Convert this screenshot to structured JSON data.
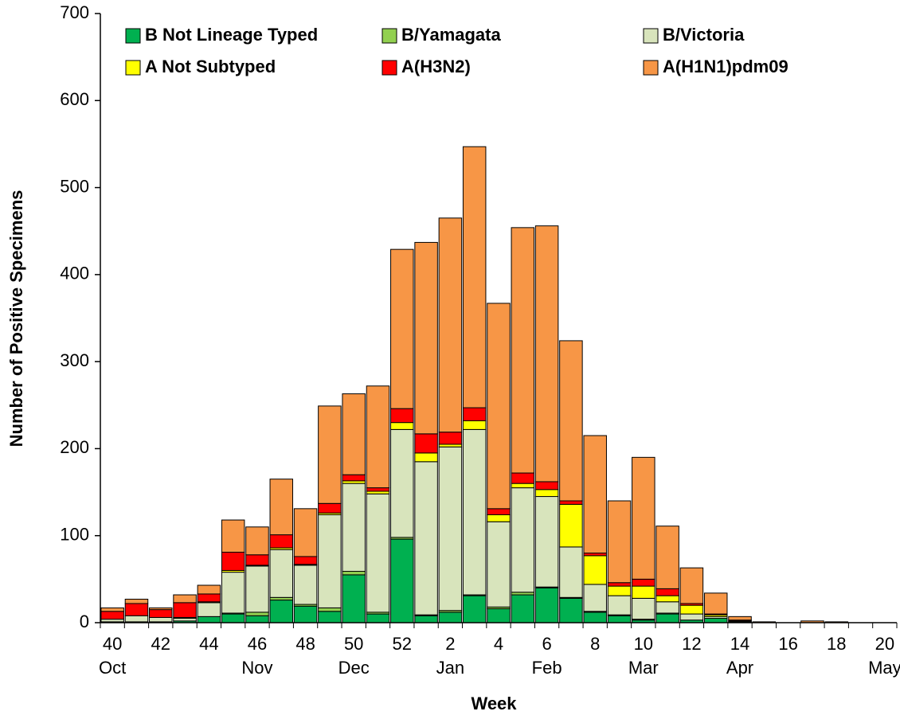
{
  "chart_data": {
    "type": "stacked-bar",
    "x_label": "Week",
    "y_label": "Number of Positive Specimens",
    "categories": [
      "40",
      null,
      "42",
      null,
      "44",
      null,
      "46",
      null,
      "48",
      null,
      "50",
      null,
      "52",
      null,
      "2",
      null,
      "4",
      null,
      "6",
      null,
      "8",
      null,
      "10",
      null,
      "12",
      null,
      "14",
      null,
      "16",
      null,
      "18",
      null,
      "20"
    ],
    "months": [
      "Oct",
      null,
      null,
      null,
      null,
      null,
      "Nov",
      null,
      null,
      null,
      "Dec",
      null,
      null,
      null,
      "Jan",
      null,
      null,
      null,
      "Feb",
      null,
      null,
      null,
      "Mar",
      null,
      null,
      null,
      "Apr",
      null,
      null,
      null,
      null,
      null,
      "May"
    ],
    "series": [
      {
        "name": "B Not Lineage Typed",
        "color": "#00b050",
        "values": [
          1,
          1,
          1,
          2,
          7,
          10,
          8,
          26,
          19,
          13,
          55,
          10,
          96,
          8,
          12,
          31,
          16,
          32,
          40,
          28,
          12,
          8,
          3,
          10,
          3,
          5,
          1,
          0,
          0,
          0,
          0,
          0,
          0
        ]
      },
      {
        "name": "B/Yamagata",
        "color": "#92d050",
        "values": [
          0,
          0,
          0,
          0,
          0,
          1,
          4,
          3,
          2,
          4,
          4,
          2,
          2,
          1,
          2,
          1,
          2,
          3,
          1,
          1,
          1,
          1,
          1,
          1,
          0,
          0,
          0,
          0,
          0,
          0,
          0,
          0,
          0
        ]
      },
      {
        "name": "B/Victoria",
        "color": "#d8e4bc",
        "values": [
          3,
          7,
          5,
          3,
          16,
          47,
          53,
          55,
          45,
          107,
          101,
          136,
          124,
          176,
          188,
          190,
          98,
          120,
          104,
          58,
          31,
          22,
          24,
          13,
          7,
          2,
          0,
          0,
          0,
          0,
          0,
          0,
          0
        ]
      },
      {
        "name": "A Not Subtyped",
        "color": "#ffff00",
        "values": [
          0,
          0,
          0,
          1,
          1,
          2,
          1,
          2,
          1,
          2,
          3,
          3,
          8,
          10,
          3,
          10,
          8,
          5,
          8,
          49,
          33,
          11,
          14,
          7,
          10,
          2,
          1,
          0,
          0,
          0,
          0,
          0,
          0
        ]
      },
      {
        "name": "A(H3N2)",
        "color": "#ff0000",
        "values": [
          9,
          14,
          9,
          17,
          9,
          21,
          12,
          15,
          9,
          11,
          7,
          4,
          16,
          22,
          14,
          15,
          7,
          12,
          9,
          4,
          3,
          4,
          8,
          8,
          2,
          1,
          1,
          0,
          0,
          0,
          0,
          0,
          0
        ]
      },
      {
        "name": "A(H1N1)pdm09",
        "color": "#f79646",
        "values": [
          4,
          5,
          2,
          9,
          10,
          37,
          32,
          64,
          55,
          112,
          93,
          117,
          183,
          220,
          246,
          300,
          236,
          282,
          294,
          184,
          135,
          94,
          140,
          72,
          41,
          24,
          4,
          1,
          0,
          2,
          1,
          0,
          0
        ]
      }
    ],
    "ylim": [
      0,
      700
    ],
    "yticks": [
      0,
      100,
      200,
      300,
      400,
      500,
      600,
      700
    ]
  }
}
